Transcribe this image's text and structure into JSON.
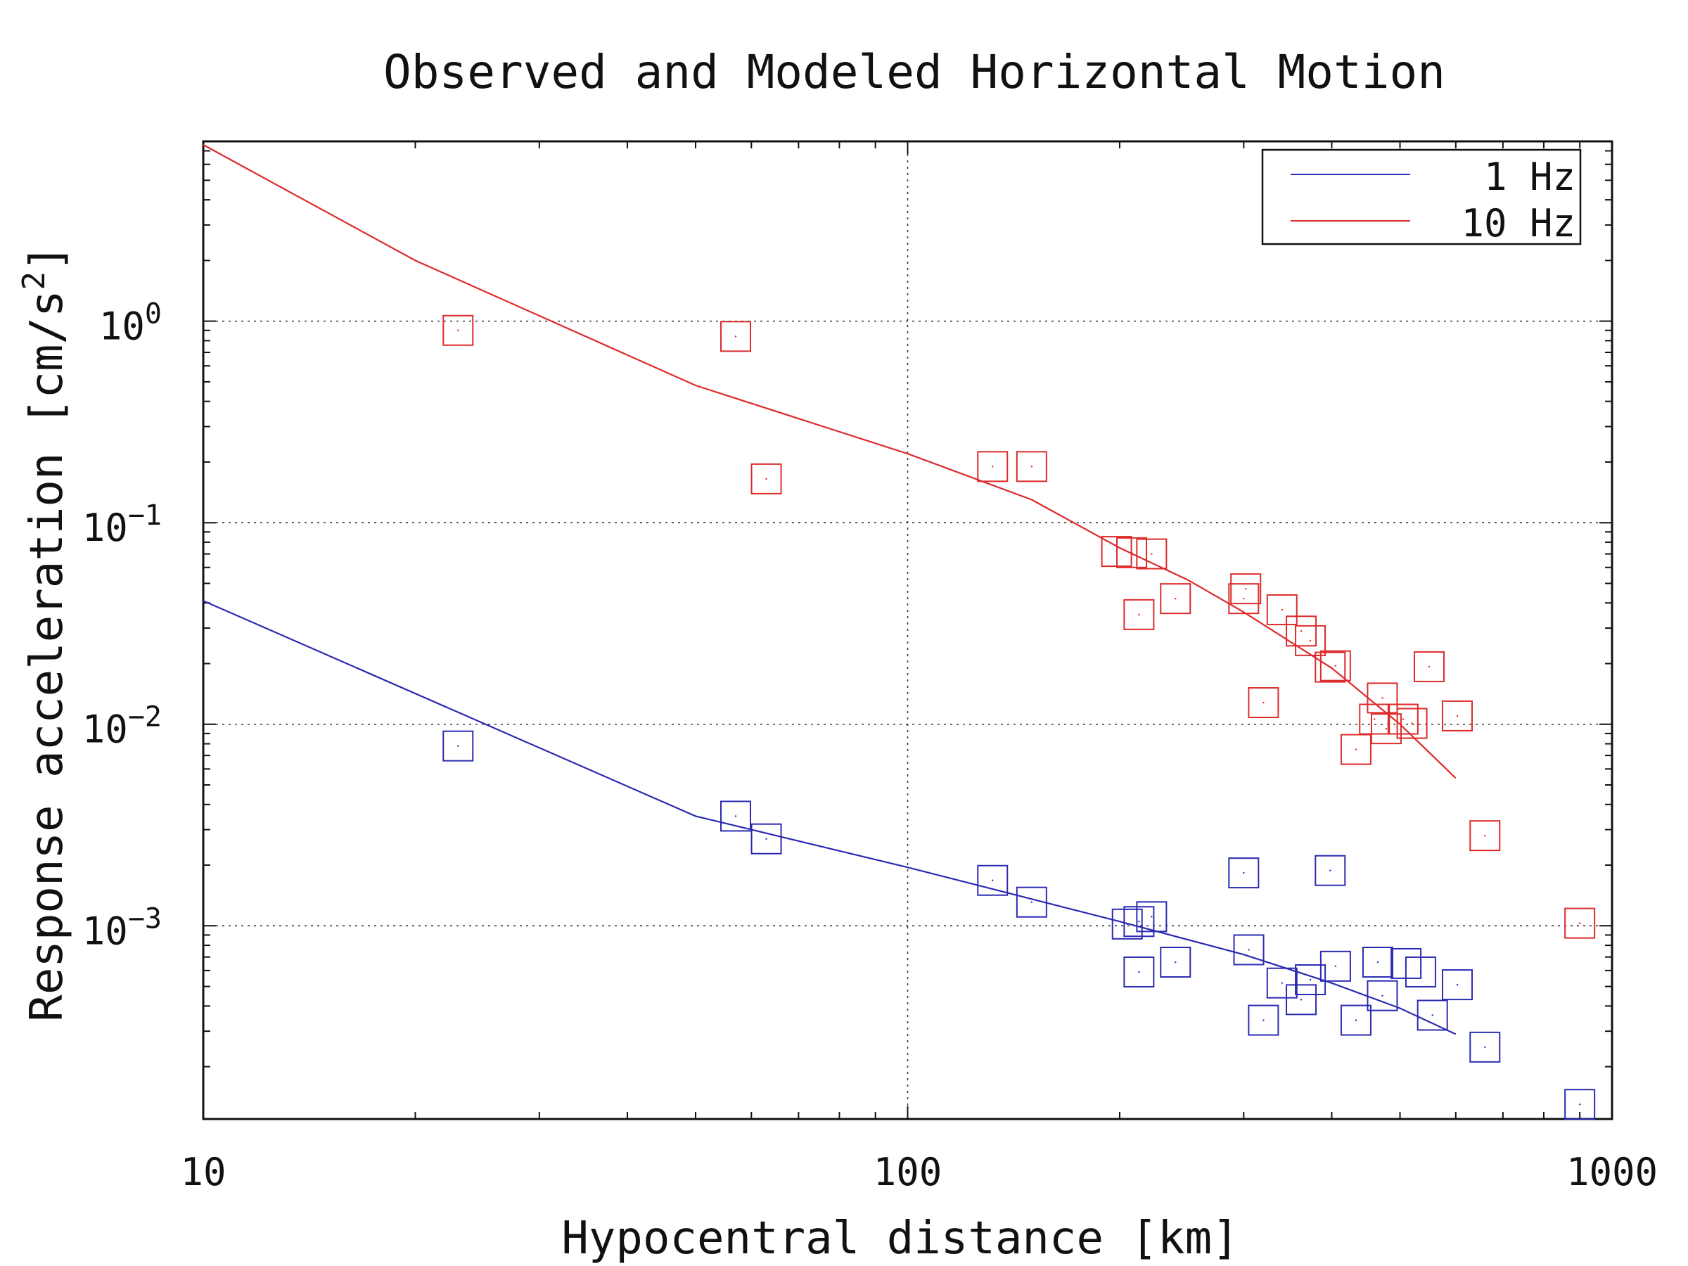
{
  "chart_data": {
    "type": "scatter",
    "title": "Observed and Modeled Horizontal Motion",
    "xlabel": "Hypocentral distance [km]",
    "ylabel_main": "Response acceleration [cm/s",
    "ylabel_sup": "2",
    "ylabel_tail": "]",
    "x_scale": "log",
    "y_scale": "log",
    "xlim": [
      10,
      1000
    ],
    "ylim": [
      0.00011,
      7.8
    ],
    "x_ticks": [
      {
        "value": 10,
        "label": "10"
      },
      {
        "value": 100,
        "label": "100"
      },
      {
        "value": 1000,
        "label": "1000"
      }
    ],
    "y_ticks": [
      {
        "value": 1,
        "base": "10",
        "exp": "0"
      },
      {
        "value": 0.1,
        "base": "10",
        "exp": "−1"
      },
      {
        "value": 0.01,
        "base": "10",
        "exp": "−2"
      },
      {
        "value": 0.001,
        "base": "10",
        "exp": "−3"
      }
    ],
    "grid": true,
    "legend_position": "top-right",
    "series": [
      {
        "name": "1 Hz",
        "color": "#2b2bb3",
        "model_line": [
          [
            10,
            0.041
          ],
          [
            50,
            0.0035
          ],
          [
            100,
            0.00195
          ],
          [
            200,
            0.00105
          ],
          [
            300,
            0.00072
          ],
          [
            400,
            0.00052
          ],
          [
            500,
            0.00039
          ],
          [
            600,
            0.00029
          ]
        ],
        "observed": [
          [
            23,
            0.0078
          ],
          [
            57,
            0.0035
          ],
          [
            63,
            0.0027
          ],
          [
            132,
            0.00168
          ],
          [
            150,
            0.00131
          ],
          [
            205,
            0.00102
          ],
          [
            213,
            0.00105
          ],
          [
            222,
            0.00111
          ],
          [
            213,
            0.00059
          ],
          [
            240,
            0.00066
          ],
          [
            300,
            0.00183
          ],
          [
            305,
            0.00076
          ],
          [
            320,
            0.00034
          ],
          [
            340,
            0.00052
          ],
          [
            362,
            0.00043
          ],
          [
            373,
            0.00054
          ],
          [
            398,
            0.00188
          ],
          [
            405,
            0.00063
          ],
          [
            433,
            0.00034
          ],
          [
            465,
            0.00066
          ],
          [
            472,
            0.00045
          ],
          [
            510,
            0.00065
          ],
          [
            535,
            0.00059
          ],
          [
            556,
            0.00036
          ],
          [
            603,
            0.00051
          ],
          [
            660,
            0.00025
          ],
          [
            900,
            0.00013
          ]
        ]
      },
      {
        "name": "10 Hz",
        "color": "#dd2b2b",
        "model_line": [
          [
            10,
            7.5
          ],
          [
            20,
            2.0
          ],
          [
            50,
            0.48
          ],
          [
            100,
            0.22
          ],
          [
            150,
            0.13
          ],
          [
            200,
            0.075
          ],
          [
            250,
            0.052
          ],
          [
            300,
            0.036
          ],
          [
            400,
            0.019
          ],
          [
            500,
            0.01
          ],
          [
            600,
            0.0054
          ]
        ],
        "observed": [
          [
            23,
            0.9
          ],
          [
            57,
            0.84
          ],
          [
            63,
            0.165
          ],
          [
            132,
            0.19
          ],
          [
            150,
            0.19
          ],
          [
            198,
            0.072
          ],
          [
            208,
            0.071
          ],
          [
            222,
            0.07
          ],
          [
            213,
            0.035
          ],
          [
            240,
            0.042
          ],
          [
            300,
            0.042
          ],
          [
            302,
            0.047
          ],
          [
            320,
            0.0128
          ],
          [
            340,
            0.037
          ],
          [
            362,
            0.029
          ],
          [
            373,
            0.026
          ],
          [
            398,
            0.0192
          ],
          [
            405,
            0.0195
          ],
          [
            433,
            0.0075
          ],
          [
            460,
            0.0106
          ],
          [
            472,
            0.0135
          ],
          [
            478,
            0.0095
          ],
          [
            505,
            0.0106
          ],
          [
            520,
            0.0101
          ],
          [
            550,
            0.0193
          ],
          [
            603,
            0.011
          ],
          [
            660,
            0.0028
          ],
          [
            900,
            0.00103
          ]
        ]
      }
    ]
  }
}
